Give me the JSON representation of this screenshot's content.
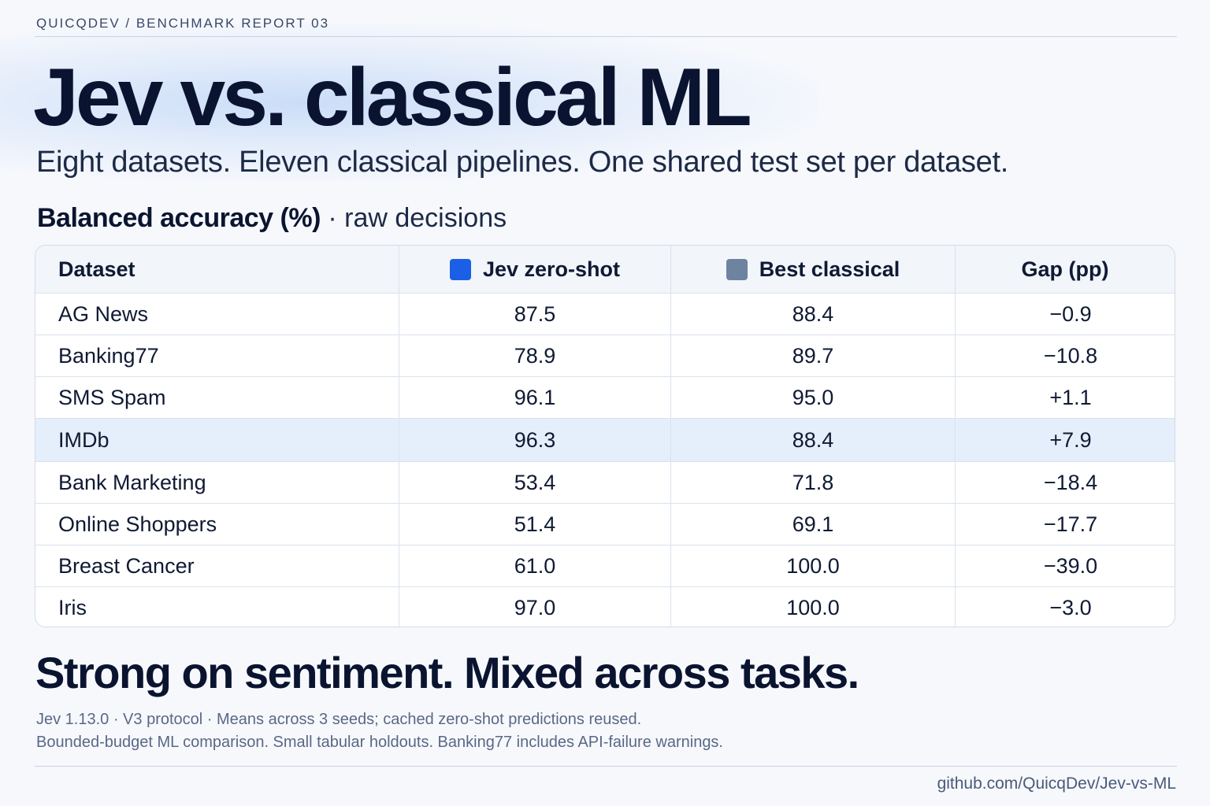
{
  "eyebrow": "QUICQDEV / BENCHMARK REPORT 03",
  "title": "Jev vs. classical ML",
  "subtitle": "Eight datasets. Eleven classical pipelines. One shared test set per dataset.",
  "metric": {
    "name": "Balanced accuracy (%)",
    "qualifier": "· raw decisions"
  },
  "colors": {
    "jev": "#1a5fe6",
    "best_classical": "#6e83a0",
    "highlight_row": "#e5effb"
  },
  "table": {
    "headers": {
      "dataset": "Dataset",
      "jev": "Jev zero-shot",
      "best": "Best classical",
      "gap": "Gap (pp)"
    },
    "rows": [
      {
        "dataset": "AG News",
        "jev": "87.5",
        "best": "88.4",
        "gap": "−0.9"
      },
      {
        "dataset": "Banking77",
        "jev": "78.9",
        "best": "89.7",
        "gap": "−10.8"
      },
      {
        "dataset": "SMS Spam",
        "jev": "96.1",
        "best": "95.0",
        "gap": "+1.1"
      },
      {
        "dataset": "IMDb",
        "jev": "96.3",
        "best": "88.4",
        "gap": "+7.9"
      },
      {
        "dataset": "Bank Marketing",
        "jev": "53.4",
        "best": "71.8",
        "gap": "−18.4"
      },
      {
        "dataset": "Online Shoppers",
        "jev": "51.4",
        "best": "69.1",
        "gap": "−17.7"
      },
      {
        "dataset": "Breast Cancer",
        "jev": "61.0",
        "best": "100.0",
        "gap": "−39.0"
      },
      {
        "dataset": "Iris",
        "jev": "97.0",
        "best": "100.0",
        "gap": "−3.0"
      }
    ]
  },
  "headline": "Strong on sentiment. Mixed across tasks.",
  "notes": [
    "Jev 1.13.0 · V3 protocol · Means across 3 seeds; cached zero-shot predictions reused.",
    "Bounded-budget ML comparison. Small tabular holdouts. Banking77 includes API-failure warnings."
  ],
  "footer_link": "github.com/QuicqDev/Jev-vs-ML"
}
